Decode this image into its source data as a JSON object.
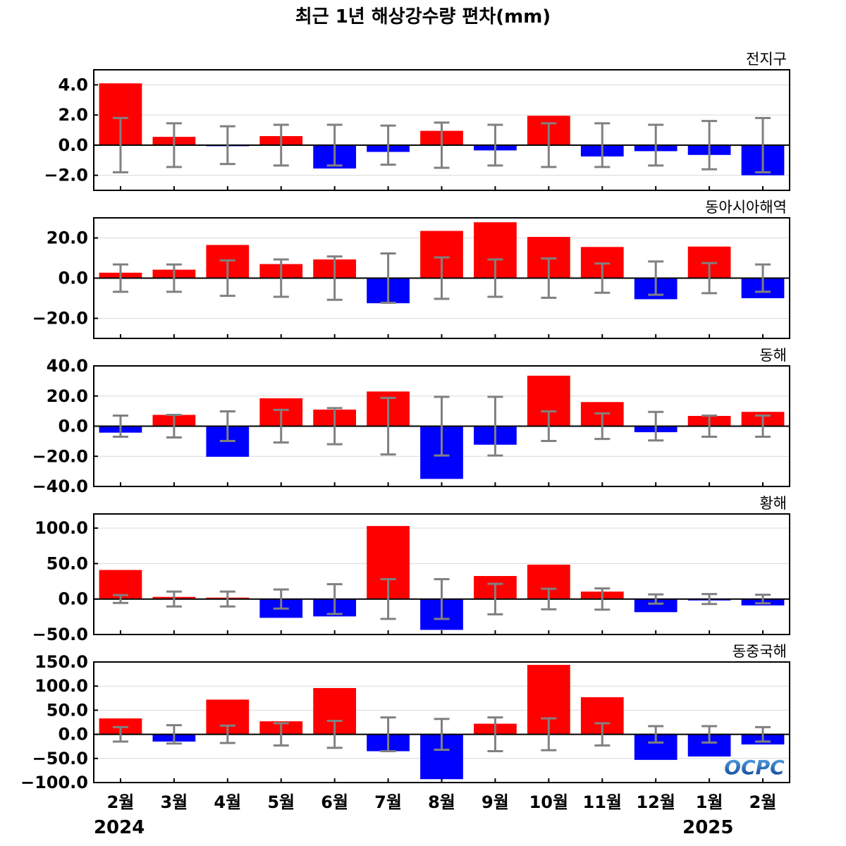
{
  "figure": {
    "title": "최근 1년 해상강수량 편차(mm)",
    "logo": "OCPC",
    "x_tick_labels": [
      "2월",
      "3월",
      "4월",
      "5월",
      "6월",
      "7월",
      "8월",
      "9월",
      "10월",
      "11월",
      "12월",
      "1월",
      "2월"
    ],
    "year_labels": [
      {
        "text": "2024",
        "category_index": 0
      },
      {
        "text": "2025",
        "category_index": 11
      }
    ],
    "colors": {
      "positive": "#ff0000",
      "negative": "#0000ff",
      "error_bar": "#808080",
      "grid": "#d9d9d9"
    }
  },
  "chart_data": [
    {
      "type": "bar",
      "title": "전지구",
      "categories": [
        "2월",
        "3월",
        "4월",
        "5월",
        "6월",
        "7월",
        "8월",
        "9월",
        "10월",
        "11월",
        "12월",
        "1월",
        "2월"
      ],
      "values": [
        4.1,
        0.55,
        -0.05,
        0.6,
        -1.55,
        -0.45,
        0.95,
        -0.35,
        1.95,
        -0.75,
        -0.4,
        -0.65,
        -2.0
      ],
      "error": [
        1.8,
        1.45,
        1.25,
        1.35,
        1.35,
        1.3,
        1.5,
        1.35,
        1.45,
        1.45,
        1.35,
        1.6,
        1.8
      ],
      "ylim": [
        -3.0,
        5.0
      ],
      "yticks": [
        -2.0,
        0.0,
        2.0,
        4.0
      ],
      "ytick_labels": [
        "−2.0",
        "0.0",
        "2.0",
        "4.0"
      ]
    },
    {
      "type": "bar",
      "title": "동아시아해역",
      "categories": [
        "2월",
        "3월",
        "4월",
        "5월",
        "6월",
        "7월",
        "8월",
        "9월",
        "10월",
        "11월",
        "12월",
        "1월",
        "2월"
      ],
      "values": [
        2.7,
        4.2,
        16.5,
        7.0,
        9.3,
        -12.5,
        23.5,
        27.8,
        20.5,
        15.5,
        -10.5,
        15.7,
        -10.0
      ],
      "error": [
        6.8,
        6.8,
        8.8,
        9.3,
        10.8,
        12.3,
        10.3,
        9.3,
        9.8,
        7.3,
        8.3,
        7.5,
        6.8
      ],
      "ylim": [
        -30.0,
        30.0
      ],
      "yticks": [
        -20.0,
        0.0,
        20.0
      ],
      "ytick_labels": [
        "−20.0",
        "0.0",
        "20.0"
      ]
    },
    {
      "type": "bar",
      "title": "동해",
      "categories": [
        "2월",
        "3월",
        "4월",
        "5월",
        "6월",
        "7월",
        "8월",
        "9월",
        "10월",
        "11월",
        "12월",
        "1월",
        "2월"
      ],
      "values": [
        -4.3,
        7.5,
        -20.3,
        18.5,
        11.0,
        23.0,
        -35.0,
        -12.3,
        33.5,
        16.0,
        -4.0,
        6.8,
        9.5
      ],
      "error": [
        7.0,
        7.5,
        9.8,
        10.8,
        12.0,
        18.8,
        19.5,
        19.5,
        9.8,
        8.5,
        9.5,
        7.0,
        7.0
      ],
      "ylim": [
        -40.0,
        40.0
      ],
      "yticks": [
        -40.0,
        -20.0,
        0.0,
        20.0,
        40.0
      ],
      "ytick_labels": [
        "−40.0",
        "−20.0",
        "0.0",
        "20.0",
        "40.0"
      ]
    },
    {
      "type": "bar",
      "title": "황해",
      "categories": [
        "2월",
        "3월",
        "4월",
        "5월",
        "6월",
        "7월",
        "8월",
        "9월",
        "10월",
        "11월",
        "12월",
        "1월",
        "2월"
      ],
      "values": [
        41.0,
        3.0,
        2.0,
        -26.5,
        -24.5,
        103.0,
        -43.5,
        32.5,
        48.5,
        10.5,
        -18.5,
        -2.0,
        -9.0
      ],
      "error": [
        5.5,
        10.5,
        10.5,
        13.5,
        21.0,
        28.0,
        28.0,
        21.5,
        14.5,
        15.0,
        6.5,
        7.0,
        6.0
      ],
      "ylim": [
        -50.0,
        120.0
      ],
      "yticks": [
        -50.0,
        0.0,
        50.0,
        100.0
      ],
      "ytick_labels": [
        "−50.0",
        "0.0",
        "50.0",
        "100.0"
      ]
    },
    {
      "type": "bar",
      "title": "동중국해",
      "categories": [
        "2월",
        "3월",
        "4월",
        "5월",
        "6월",
        "7월",
        "8월",
        "9월",
        "10월",
        "11월",
        "12월",
        "1월",
        "2월"
      ],
      "values": [
        33.0,
        -15.0,
        72.0,
        27.0,
        96.0,
        -35.0,
        -93.0,
        22.0,
        144.0,
        77.0,
        -53.0,
        -46.0,
        -21.0
      ],
      "error": [
        15.0,
        19.0,
        18.0,
        23.0,
        28.0,
        35.0,
        32.0,
        35.0,
        33.0,
        23.0,
        17.0,
        17.0,
        15.0
      ],
      "ylim": [
        -100.0,
        150.0
      ],
      "yticks": [
        -100.0,
        -50.0,
        0.0,
        50.0,
        100.0,
        150.0
      ],
      "ytick_labels": [
        "−100.0",
        "−50.0",
        "0.0",
        "50.0",
        "100.0",
        "150.0"
      ]
    }
  ]
}
